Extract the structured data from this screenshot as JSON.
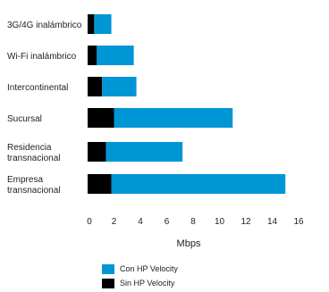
{
  "chart_data": {
    "type": "bar",
    "orientation": "horizontal",
    "stacked": true,
    "categories": [
      [
        "3G/4G inalámbrico"
      ],
      [
        "Wi-Fi inalámbrico"
      ],
      [
        "Intercontinental"
      ],
      [
        "Sucursal"
      ],
      [
        "Residencia",
        "transnacional"
      ],
      [
        "Empresa",
        "transnacional"
      ]
    ],
    "series": [
      {
        "name": "Sin HP Velocity",
        "color": "#000000",
        "values": [
          0.5,
          0.7,
          1.1,
          2.0,
          1.4,
          1.8
        ]
      },
      {
        "name": "Con HP Velocity",
        "color": "#0096d6",
        "values": [
          1.3,
          2.8,
          2.6,
          9.0,
          5.8,
          13.2
        ]
      }
    ],
    "xlabel": "Mbps",
    "xlim": [
      0,
      16
    ],
    "xticks": [
      0,
      2,
      4,
      6,
      8,
      10,
      12,
      14,
      16
    ],
    "grid": false,
    "legend_position": "bottom"
  },
  "legend": [
    {
      "label": "Con HP Velocity",
      "color": "#0096d6"
    },
    {
      "label": "Sin HP Velocity",
      "color": "#000000"
    }
  ]
}
